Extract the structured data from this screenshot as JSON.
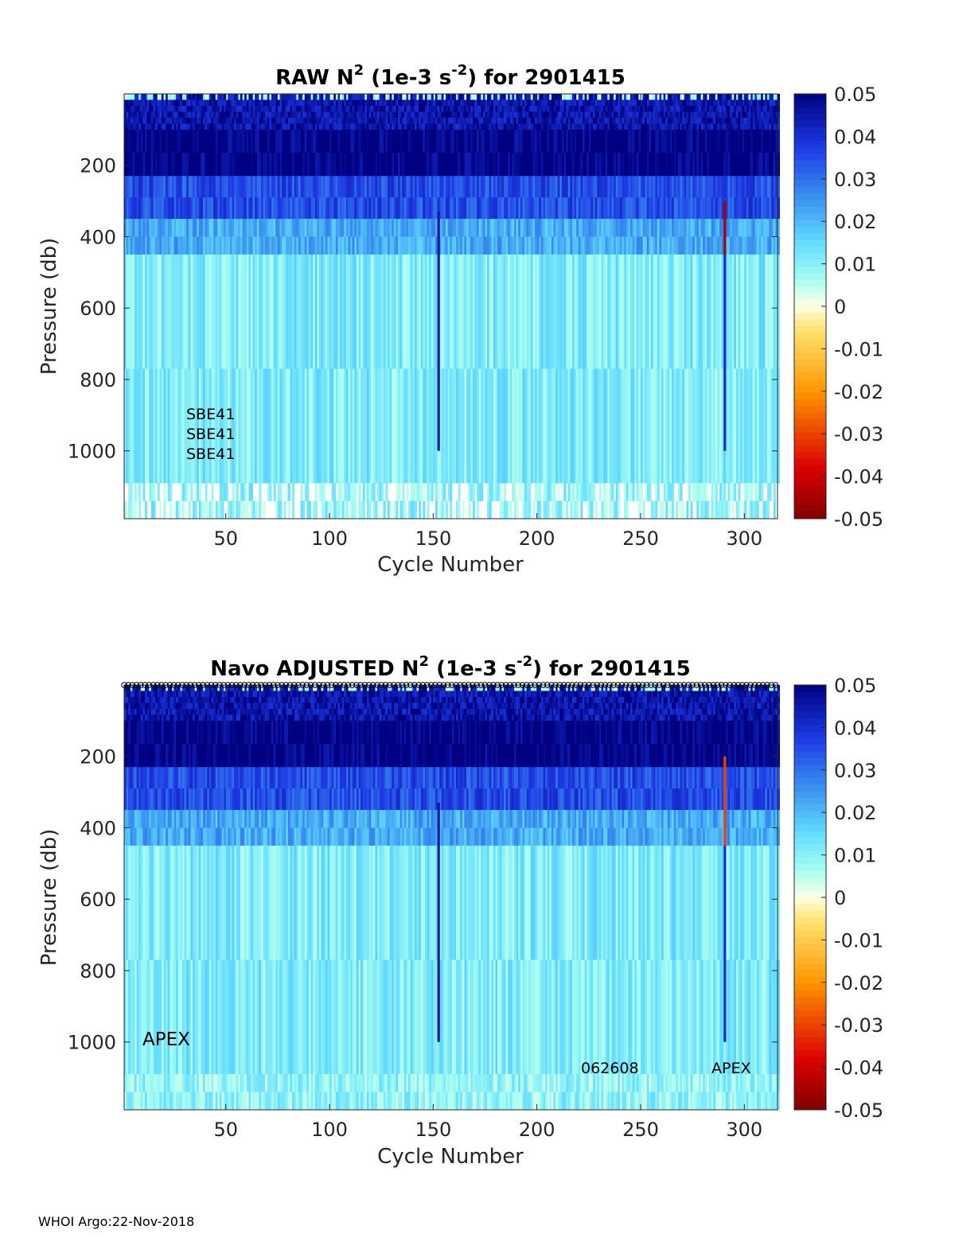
{
  "footer": "WHOI Argo:22-Nov-2018",
  "colorbar": {
    "ticks": [
      "0.05",
      "0.04",
      "0.03",
      "0.02",
      "0.01",
      "0",
      "-0.01",
      "-0.02",
      "-0.03",
      "-0.04",
      "-0.05"
    ],
    "range": [
      -0.05,
      0.05
    ],
    "colormap": "jet (reversed sign: dark red negative, dark blue positive)"
  },
  "chart_data": [
    {
      "type": "heatmap",
      "title_parts": [
        "RAW N",
        "2",
        " (1e-3 s",
        "-2",
        ") for 2901415"
      ],
      "xlabel": "Cycle Number",
      "ylabel": "Pressure (db)",
      "x_ticks": [
        "50",
        "100",
        "150",
        "200",
        "250",
        "300"
      ],
      "y_ticks": [
        "200",
        "400",
        "600",
        "800",
        "1000"
      ],
      "xlim": [
        1,
        316
      ],
      "ylim": [
        1190,
        0
      ],
      "clim": [
        -0.05,
        0.05
      ],
      "pressure_bands": [
        {
          "p_top": 0,
          "p_bottom": 100,
          "typical_value": 0.045,
          "note": "speckled, surface near-zero patches"
        },
        {
          "p_top": 100,
          "p_bottom": 230,
          "typical_value": 0.05
        },
        {
          "p_top": 230,
          "p_bottom": 350,
          "typical_value": 0.035
        },
        {
          "p_top": 350,
          "p_bottom": 450,
          "typical_value": 0.022
        },
        {
          "p_top": 450,
          "p_bottom": 1090,
          "typical_value": 0.011
        },
        {
          "p_top": 1090,
          "p_bottom": 1190,
          "typical_value": 0.009,
          "note": "gappy"
        }
      ],
      "anomalous_cycles": [
        {
          "cycle": 152,
          "value": 0.045,
          "p_range": [
            330,
            1000
          ]
        },
        {
          "cycle": 290,
          "value": -0.045,
          "p_range": [
            300,
            450
          ]
        },
        {
          "cycle": 290,
          "value": 0.04,
          "p_range": [
            450,
            1000
          ]
        }
      ],
      "annotations": [
        "SBE41",
        "SBE41",
        "SBE41"
      ]
    },
    {
      "type": "heatmap",
      "title_parts": [
        "Navo  ADJUSTED N",
        "2",
        " (1e-3 s",
        "-2",
        ") for 2901415"
      ],
      "xlabel": "Cycle Number",
      "ylabel": "Pressure (db)",
      "x_ticks": [
        "50",
        "100",
        "150",
        "200",
        "250",
        "300"
      ],
      "y_ticks": [
        "200",
        "400",
        "600",
        "800",
        "1000"
      ],
      "xlim": [
        1,
        316
      ],
      "ylim": [
        1190,
        0
      ],
      "clim": [
        -0.05,
        0.05
      ],
      "pressure_bands": [
        {
          "p_top": 0,
          "p_bottom": 100,
          "typical_value": 0.045
        },
        {
          "p_top": 100,
          "p_bottom": 230,
          "typical_value": 0.05
        },
        {
          "p_top": 230,
          "p_bottom": 350,
          "typical_value": 0.035
        },
        {
          "p_top": 350,
          "p_bottom": 450,
          "typical_value": 0.022
        },
        {
          "p_top": 450,
          "p_bottom": 1090,
          "typical_value": 0.011
        },
        {
          "p_top": 1090,
          "p_bottom": 1190,
          "typical_value": 0.009
        }
      ],
      "anomalous_cycles": [
        {
          "cycle": 152,
          "value": 0.045,
          "p_range": [
            330,
            1000
          ]
        },
        {
          "cycle": 290,
          "value": -0.03,
          "p_range": [
            200,
            450
          ]
        },
        {
          "cycle": 290,
          "value": 0.04,
          "p_range": [
            450,
            1000
          ]
        }
      ],
      "annotations": [
        "APEX",
        "062608",
        "APEX"
      ]
    }
  ]
}
